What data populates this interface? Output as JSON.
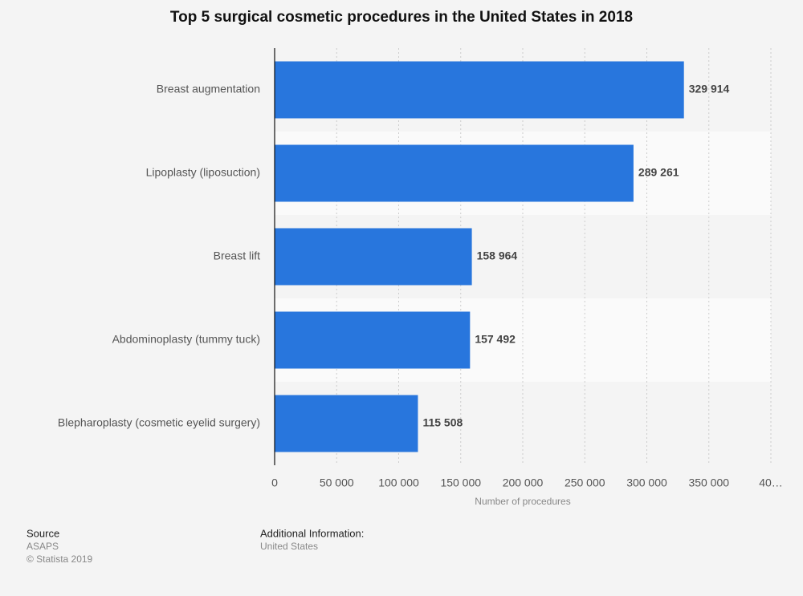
{
  "chart_data": {
    "type": "bar",
    "orientation": "horizontal",
    "title": "Top 5 surgical cosmetic procedures in the United States in 2018",
    "categories": [
      "Breast augmentation",
      "Lipoplasty (liposuction)",
      "Breast lift",
      "Abdominoplasty (tummy tuck)",
      "Blepharoplasty (cosmetic eyelid surgery)"
    ],
    "values": [
      329914,
      289261,
      158964,
      157492,
      115508
    ],
    "value_labels": [
      "329 914",
      "289 261",
      "158 964",
      "157 492",
      "115 508"
    ],
    "color": "#2876dd",
    "x_label": "Number of procedures",
    "xlim": [
      0,
      400000
    ],
    "xticks": [
      0,
      {
        "value": 50000,
        "label": "50 000"
      },
      {
        "value": 100000,
        "label": "100 000"
      },
      {
        "value": 150000,
        "label": "150 000"
      },
      {
        "value": 200000,
        "label": "200 000"
      },
      {
        "value": 250000,
        "label": "250 000"
      },
      {
        "value": 300000,
        "label": "300 000"
      },
      {
        "value": 350000,
        "label": "350 000"
      },
      {
        "value": 400000,
        "label": "40…"
      }
    ],
    "grid": true
  },
  "footer": {
    "source_label": "Source",
    "source": "ASAPS",
    "copyright": "© Statista 2019",
    "additional_info_label": "Additional Information:",
    "additional_info": "United States"
  }
}
